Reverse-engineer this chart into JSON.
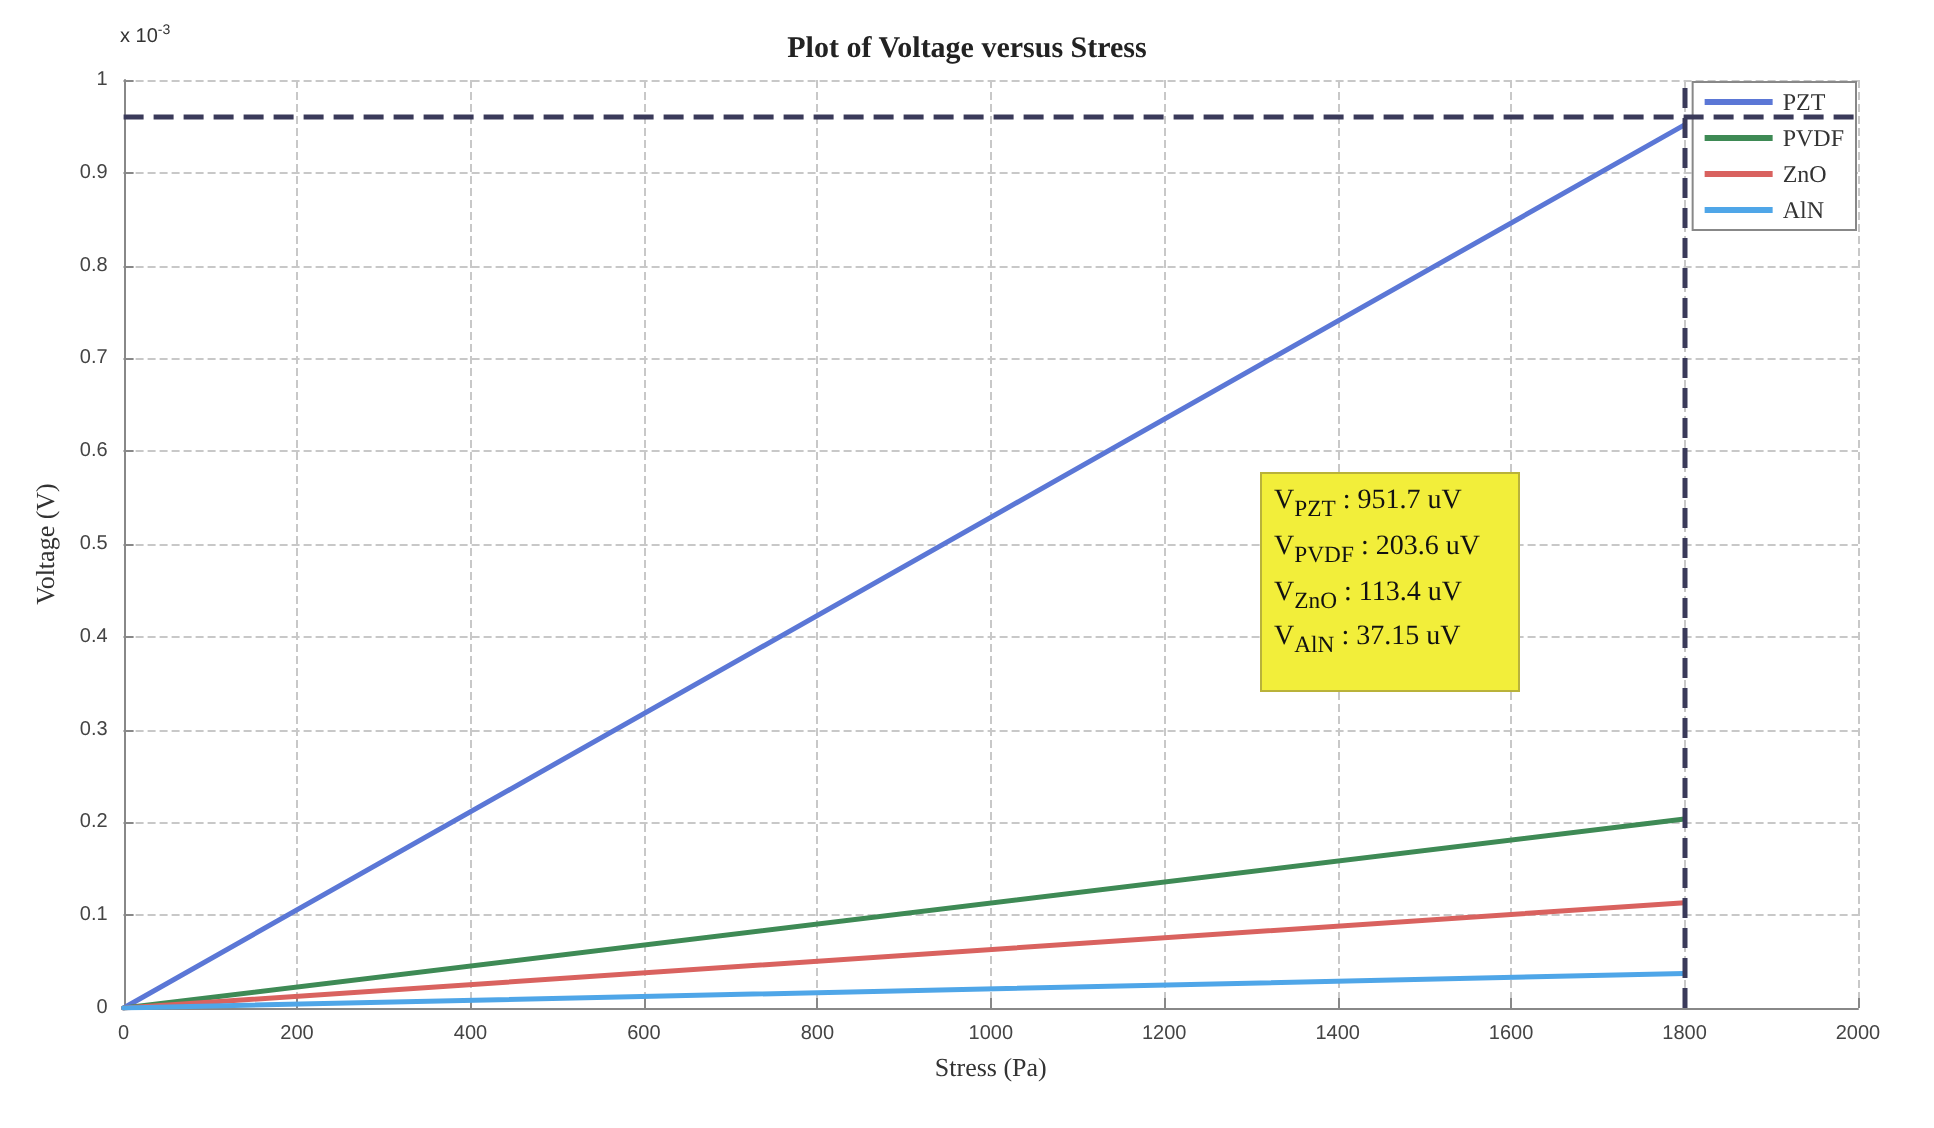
{
  "chart_data": {
    "type": "line",
    "title": "Plot of Voltage versus Stress",
    "xlabel": "Stress (Pa)",
    "ylabel": "Voltage (V)",
    "annotations": [
      "x 10$^{-3}$",
      "V$_{PZT}$ : 951.7 uV",
      "V$_{PVDF}$ : 203.6 uV",
      "V$_{ZnO}$ : 113.4 uV",
      "V$_{AlN}$ : 37.15 uV"
    ],
    "x": [
      0,
      1800
    ],
    "series": [
      {
        "name": "PZT",
        "color": "#5b77d6",
        "values": [
          0,
          0.9517
        ]
      },
      {
        "name": "PVDF",
        "color": "#3e8a55",
        "values": [
          0,
          0.2036
        ]
      },
      {
        "name": "ZnO",
        "color": "#d9625f",
        "values": [
          0,
          0.1134
        ]
      },
      {
        "name": "AlN",
        "color": "#4fa6e8",
        "values": [
          0,
          0.03715
        ]
      }
    ],
    "xlim": [
      0,
      2000
    ],
    "xticks": [
      0,
      200,
      400,
      600,
      800,
      1000,
      1200,
      1400,
      1600,
      1800,
      2000
    ],
    "ylim": [
      0,
      1
    ],
    "yticks": [
      0,
      0.1,
      0.2,
      0.3,
      0.4,
      0.5,
      0.6,
      0.7,
      0.8,
      0.9,
      1
    ],
    "ref_lines": [
      {
        "axis": "x",
        "value": 1800,
        "color": "#3a3a5a",
        "line_style": "dashed"
      },
      {
        "axis": "y",
        "value": 0.96,
        "color": "#3a3a5a",
        "line_style": "dashed"
      }
    ],
    "grid": true,
    "legend": "top right",
    "line_style": "solid",
    "marker": "none"
  }
}
